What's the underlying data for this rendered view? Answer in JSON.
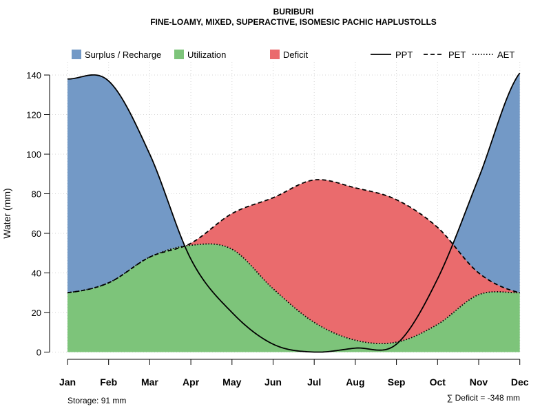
{
  "chart_data": {
    "type": "area",
    "title": "BURIBURI",
    "subtitle": "FINE-LOAMY, MIXED, SUPERACTIVE, ISOMESIC PACHIC HAPLUSTOLLS",
    "xlabel": "",
    "ylabel": "Water (mm)",
    "ylim": [
      0,
      145
    ],
    "yticks": [
      0,
      20,
      40,
      60,
      80,
      100,
      120,
      140
    ],
    "grid": true,
    "categories": [
      "Jan",
      "Feb",
      "Mar",
      "Apr",
      "May",
      "Jun",
      "Jul",
      "Aug",
      "Sep",
      "Oct",
      "Nov",
      "Dec"
    ],
    "series": [
      {
        "name": "PPT",
        "style": "solid",
        "values": [
          138,
          137,
          100,
          47,
          20,
          4,
          0,
          2,
          4,
          37,
          88,
          141
        ]
      },
      {
        "name": "PET",
        "style": "dashed",
        "values": [
          30,
          35,
          48,
          55,
          70,
          78,
          87,
          83,
          77,
          63,
          40,
          30
        ]
      },
      {
        "name": "AET",
        "style": "dotted",
        "values": [
          30,
          35,
          48,
          54,
          52,
          32,
          15,
          6,
          5,
          14,
          29,
          30
        ]
      }
    ],
    "fills": [
      {
        "name": "Surplus / Recharge",
        "color": "#7399c6"
      },
      {
        "name": "Utilization",
        "color": "#7dc47a"
      },
      {
        "name": "Deficit",
        "color": "#ea6b6d"
      }
    ],
    "legend": {
      "position": "top",
      "fill_labels": [
        "Surplus / Recharge",
        "Utilization",
        "Deficit"
      ],
      "line_labels": [
        "PPT",
        "PET",
        "AET"
      ]
    },
    "annotations": {
      "storage": "Storage: 91 mm",
      "deficit": "∑ Deficit = -348 mm"
    }
  }
}
